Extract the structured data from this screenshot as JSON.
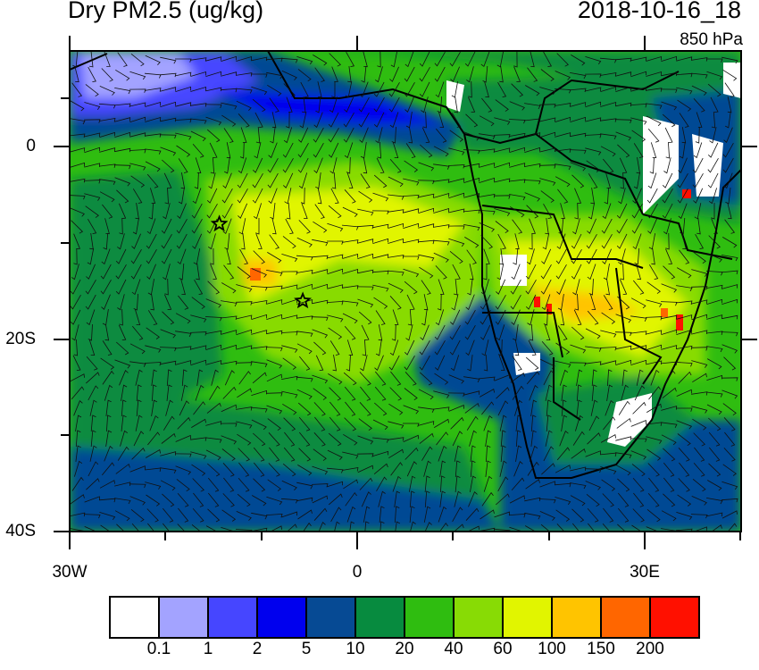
{
  "header": {
    "title": "Dry PM2.5 (ug/kg)",
    "datetime": "2018-10-16_18",
    "level": "850 hPa"
  },
  "map": {
    "lon_range": [
      -30,
      40
    ],
    "lat_range": [
      -40,
      10
    ],
    "lat_tick_labels": [
      "0",
      "20S",
      "40S"
    ],
    "lon_tick_labels": [
      "30W",
      "0",
      "30E"
    ],
    "markers": [
      {
        "icon": "star-icon",
        "lon": -14.4,
        "lat": -8.0
      },
      {
        "icon": "star-icon",
        "lon": -5.7,
        "lat": -16.0
      }
    ],
    "overlay": "wind-barbs"
  },
  "colorbar": {
    "colors": [
      "#ffffff",
      "#a3a3ff",
      "#4646ff",
      "#0000ee",
      "#064a94",
      "#078b3f",
      "#2fbd10",
      "#88db05",
      "#e1f500",
      "#ffc400",
      "#ff6600",
      "#ff1000"
    ],
    "labels": [
      "0.1",
      "1",
      "2",
      "5",
      "10",
      "20",
      "40",
      "60",
      "100",
      "150",
      "200"
    ]
  }
}
